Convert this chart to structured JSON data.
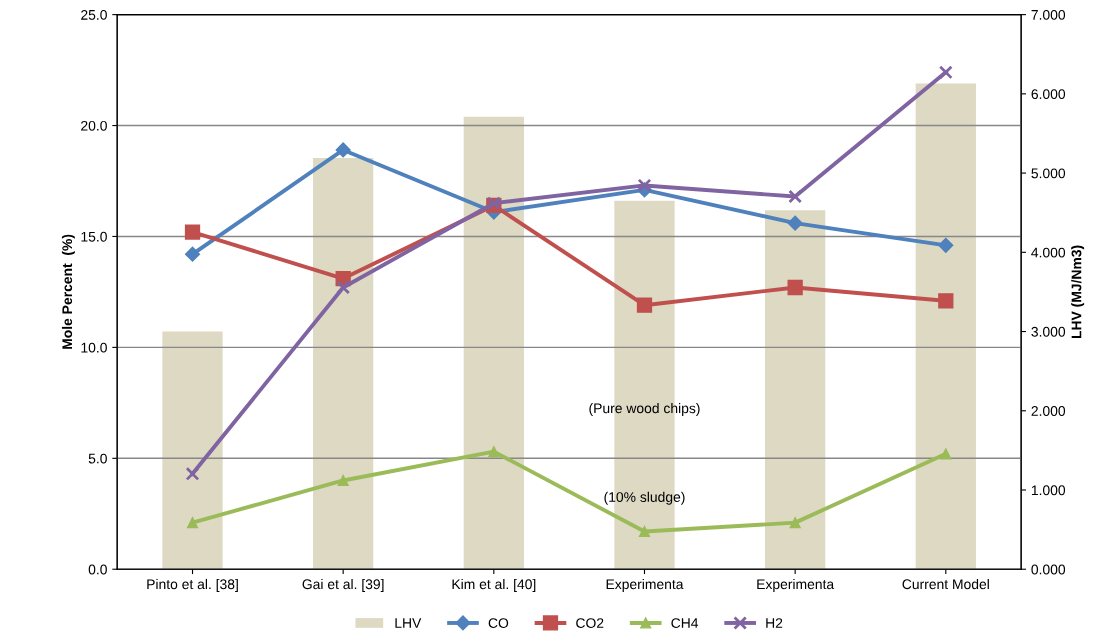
{
  "chart_data": {
    "type": "line",
    "categories": [
      "Pinto et al. [38]",
      "Gai et al. [39]",
      "Kim et al. [40]",
      "Experimenta",
      "Experimenta",
      "Current Model"
    ],
    "ylabel": "Mole Percent  (%)",
    "y2label": "LHV (MJ/Nm3)",
    "ylim": [
      0,
      25
    ],
    "yticks": [
      {
        "value": 0,
        "label": "0.0"
      },
      {
        "value": 5,
        "label": "5.0"
      },
      {
        "value": 10,
        "label": "10.0"
      },
      {
        "value": 15,
        "label": "15.0"
      },
      {
        "value": 20,
        "label": "20.0"
      },
      {
        "value": 25,
        "label": "25.0"
      }
    ],
    "y2lim": [
      0,
      7
    ],
    "y2ticks": [
      {
        "value": 0,
        "label": "0.000"
      },
      {
        "value": 1,
        "label": "1.000"
      },
      {
        "value": 2,
        "label": "2.000"
      },
      {
        "value": 3,
        "label": "3.000"
      },
      {
        "value": 4,
        "label": "4.000"
      },
      {
        "value": 5,
        "label": "5.000"
      },
      {
        "value": 6,
        "label": "6.000"
      },
      {
        "value": 7,
        "label": "7.000"
      }
    ],
    "grid": "y",
    "legend": "bottom",
    "annotations": [
      "(Pure wood chips)",
      "(10% sludge)"
    ],
    "series": [
      {
        "name": "LHV",
        "type": "bar",
        "axis": "y2",
        "color": "#ddd9c3",
        "values": [
          3.0,
          5.19,
          5.71,
          4.65,
          4.53,
          6.13
        ]
      },
      {
        "name": "CO",
        "color": "#4f81bd",
        "marker": "diamond",
        "values": [
          14.2,
          18.9,
          16.1,
          17.1,
          15.6,
          14.6
        ]
      },
      {
        "name": "CO2",
        "color": "#c0504d",
        "marker": "square",
        "values": [
          15.2,
          13.1,
          16.4,
          11.9,
          12.7,
          12.1
        ]
      },
      {
        "name": "CH4",
        "color": "#9bbb59",
        "marker": "triangle",
        "values": [
          2.1,
          4.0,
          5.3,
          1.7,
          2.1,
          5.2
        ]
      },
      {
        "name": "H2",
        "color": "#8064a2",
        "marker": "cross",
        "values": [
          4.3,
          12.7,
          16.5,
          17.3,
          16.8,
          22.4
        ]
      }
    ]
  }
}
